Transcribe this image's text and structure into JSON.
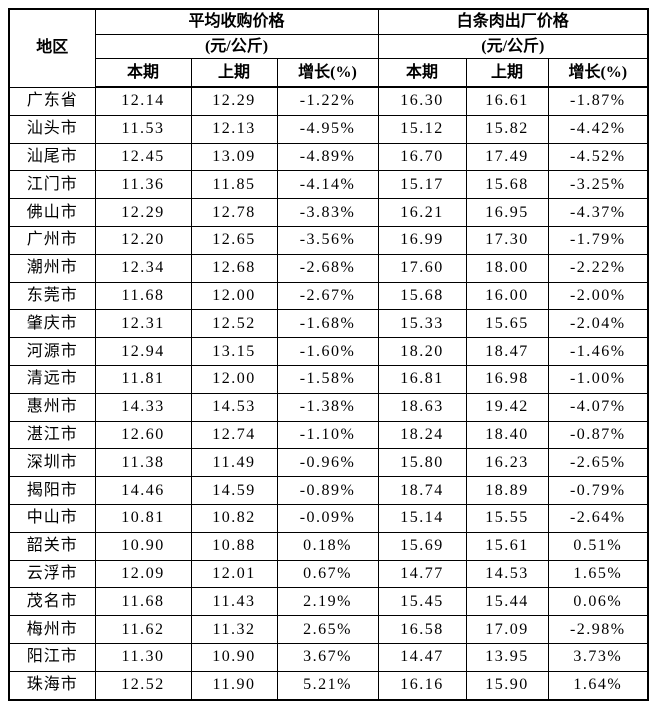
{
  "colors": {
    "background": "#ffffff",
    "border": "#000000",
    "text": "#000000"
  },
  "table": {
    "region_header": "地区",
    "groups": [
      {
        "title": "平均收购价格",
        "unit": "(元/公斤)"
      },
      {
        "title": "白条肉出厂价格",
        "unit": "(元/公斤)"
      }
    ],
    "sub_headers": [
      "本期",
      "上期",
      "增长(%)"
    ],
    "rows": [
      {
        "region": "广东省",
        "values": [
          "12.14",
          "12.29",
          "-1.22%",
          "16.30",
          "16.61",
          "-1.87%"
        ]
      },
      {
        "region": "汕头市",
        "values": [
          "11.53",
          "12.13",
          "-4.95%",
          "15.12",
          "15.82",
          "-4.42%"
        ]
      },
      {
        "region": "汕尾市",
        "values": [
          "12.45",
          "13.09",
          "-4.89%",
          "16.70",
          "17.49",
          "-4.52%"
        ]
      },
      {
        "region": "江门市",
        "values": [
          "11.36",
          "11.85",
          "-4.14%",
          "15.17",
          "15.68",
          "-3.25%"
        ]
      },
      {
        "region": "佛山市",
        "values": [
          "12.29",
          "12.78",
          "-3.83%",
          "16.21",
          "16.95",
          "-4.37%"
        ]
      },
      {
        "region": "广州市",
        "values": [
          "12.20",
          "12.65",
          "-3.56%",
          "16.99",
          "17.30",
          "-1.79%"
        ]
      },
      {
        "region": "潮州市",
        "values": [
          "12.34",
          "12.68",
          "-2.68%",
          "17.60",
          "18.00",
          "-2.22%"
        ]
      },
      {
        "region": "东莞市",
        "values": [
          "11.68",
          "12.00",
          "-2.67%",
          "15.68",
          "16.00",
          "-2.00%"
        ]
      },
      {
        "region": "肇庆市",
        "values": [
          "12.31",
          "12.52",
          "-1.68%",
          "15.33",
          "15.65",
          "-2.04%"
        ]
      },
      {
        "region": "河源市",
        "values": [
          "12.94",
          "13.15",
          "-1.60%",
          "18.20",
          "18.47",
          "-1.46%"
        ]
      },
      {
        "region": "清远市",
        "values": [
          "11.81",
          "12.00",
          "-1.58%",
          "16.81",
          "16.98",
          "-1.00%"
        ]
      },
      {
        "region": "惠州市",
        "values": [
          "14.33",
          "14.53",
          "-1.38%",
          "18.63",
          "19.42",
          "-4.07%"
        ]
      },
      {
        "region": "湛江市",
        "values": [
          "12.60",
          "12.74",
          "-1.10%",
          "18.24",
          "18.40",
          "-0.87%"
        ]
      },
      {
        "region": "深圳市",
        "values": [
          "11.38",
          "11.49",
          "-0.96%",
          "15.80",
          "16.23",
          "-2.65%"
        ]
      },
      {
        "region": "揭阳市",
        "values": [
          "14.46",
          "14.59",
          "-0.89%",
          "18.74",
          "18.89",
          "-0.79%"
        ]
      },
      {
        "region": "中山市",
        "values": [
          "10.81",
          "10.82",
          "-0.09%",
          "15.14",
          "15.55",
          "-2.64%"
        ]
      },
      {
        "region": "韶关市",
        "values": [
          "10.90",
          "10.88",
          "0.18%",
          "15.69",
          "15.61",
          "0.51%"
        ]
      },
      {
        "region": "云浮市",
        "values": [
          "12.09",
          "12.01",
          "0.67%",
          "14.77",
          "14.53",
          "1.65%"
        ]
      },
      {
        "region": "茂名市",
        "values": [
          "11.68",
          "11.43",
          "2.19%",
          "15.45",
          "15.44",
          "0.06%"
        ]
      },
      {
        "region": "梅州市",
        "values": [
          "11.62",
          "11.32",
          "2.65%",
          "16.58",
          "17.09",
          "-2.98%"
        ]
      },
      {
        "region": "阳江市",
        "values": [
          "11.30",
          "10.90",
          "3.67%",
          "14.47",
          "13.95",
          "3.73%"
        ]
      },
      {
        "region": "珠海市",
        "values": [
          "12.52",
          "11.90",
          "5.21%",
          "16.16",
          "15.90",
          "1.64%"
        ]
      }
    ]
  }
}
